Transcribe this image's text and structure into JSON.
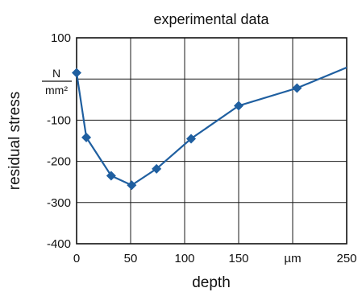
{
  "chart_data": {
    "type": "line",
    "title": "experimental data",
    "xlabel": "depth",
    "ylabel": "residual stress",
    "y_unit_numerator": "N",
    "y_unit_denominator": "mm²",
    "x_unit_tick": "µm",
    "xlim": [
      0,
      250
    ],
    "ylim": [
      -400,
      100
    ],
    "x_ticks": [
      0,
      50,
      100,
      150,
      200,
      250
    ],
    "x_tick_labels": [
      "0",
      "50",
      "100",
      "150",
      "µm",
      "250"
    ],
    "y_ticks": [
      100,
      0,
      -100,
      -200,
      -300,
      -400
    ],
    "y_tick_labels": [
      "100",
      "",
      "-100",
      "-200",
      "-300",
      "-400"
    ],
    "grid": true,
    "series": [
      {
        "color": "#1f5fa0",
        "marker": "diamond",
        "x": [
          0,
          9,
          32,
          51,
          74,
          106,
          150,
          204,
          252
        ],
        "y": [
          15,
          -142,
          -235,
          -258,
          -218,
          -145,
          -65,
          -22,
          30
        ],
        "marker_indices": [
          0,
          1,
          2,
          3,
          4,
          5,
          6,
          7
        ]
      }
    ]
  }
}
